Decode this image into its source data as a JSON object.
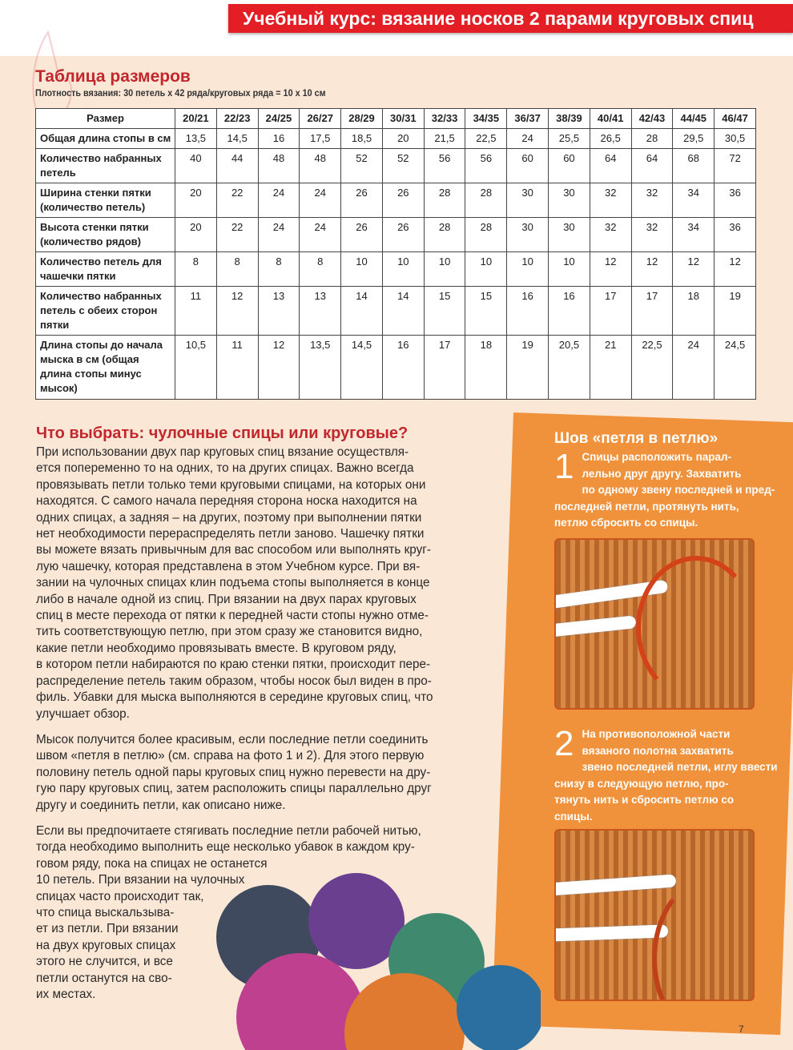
{
  "header": {
    "banner": "Учебный курс: вязание носков 2 парами круговых спиц",
    "banner_color": "#e31e24"
  },
  "size_table": {
    "title": "Таблица размеров",
    "subtitle": "Плотность вязания: 30 петель х 42 ряда/круговых ряда = 10 х 10 см",
    "header_label": "Размер",
    "sizes": [
      "20/21",
      "22/23",
      "24/25",
      "26/27",
      "28/29",
      "30/31",
      "32/33",
      "34/35",
      "36/37",
      "38/39",
      "40/41",
      "42/43",
      "44/45",
      "46/47"
    ],
    "rows": [
      {
        "label": "Общая длина стопы в см",
        "values": [
          "13,5",
          "14,5",
          "16",
          "17,5",
          "18,5",
          "20",
          "21,5",
          "22,5",
          "24",
          "25,5",
          "26,5",
          "28",
          "29,5",
          "30,5"
        ]
      },
      {
        "label": "Количество набранных петель",
        "values": [
          "40",
          "44",
          "48",
          "48",
          "52",
          "52",
          "56",
          "56",
          "60",
          "60",
          "64",
          "64",
          "68",
          "72"
        ]
      },
      {
        "label": "Ширина стенки пятки (количество петель)",
        "values": [
          "20",
          "22",
          "24",
          "24",
          "26",
          "26",
          "28",
          "28",
          "30",
          "30",
          "32",
          "32",
          "34",
          "36"
        ]
      },
      {
        "label": "Высота стенки пятки (количество рядов)",
        "values": [
          "20",
          "22",
          "24",
          "24",
          "26",
          "26",
          "28",
          "28",
          "30",
          "30",
          "32",
          "32",
          "34",
          "36"
        ]
      },
      {
        "label": "Количество петель для чашечки пятки",
        "values": [
          "8",
          "8",
          "8",
          "8",
          "10",
          "10",
          "10",
          "10",
          "10",
          "10",
          "12",
          "12",
          "12",
          "12"
        ]
      },
      {
        "label": "Количество набранных петель с обеих сторон пятки",
        "values": [
          "11",
          "12",
          "13",
          "13",
          "14",
          "14",
          "15",
          "15",
          "16",
          "16",
          "17",
          "17",
          "18",
          "19"
        ]
      },
      {
        "label": "Длина стопы до начала мыска в см (общая длина стопы минус мысок)",
        "values": [
          "10,5",
          "11",
          "12",
          "13,5",
          "14,5",
          "16",
          "17",
          "18",
          "19",
          "20,5",
          "21",
          "22,5",
          "24",
          "24,5"
        ]
      }
    ]
  },
  "article": {
    "title": "Что выбрать: чулочные спицы или круговые?",
    "paragraphs": [
      [
        "При использовании двух пар круговых спиц вязание осуществля-",
        "ется попеременно то на одних, то на других спицах. Важно всегда",
        "провязывать петли только теми круговыми спицами, на которых они",
        "находятся. С самого начала передняя сторона носка находится на",
        "одних спицах, а задняя – на других, поэтому при выполнении пятки",
        "нет необходимости перераспределять петли заново. Чашечку пятки",
        "вы можете вязать привычным для вас способом или выполнять круг-",
        "лую чашечку, которая представлена в этом Учебном курсе. При вя-",
        "зании на чулочных спицах клин подъема стопы выполняется в конце",
        "либо в начале одной из спиц. При вязании на двух парах круговых",
        "спиц в месте перехода от пятки к передней части стопы нужно отме-",
        "тить соответствующую петлю, при этом сразу же становится видно,",
        "какие петли необходимо провязывать вместе. В круговом ряду,",
        "в котором петли набираются по краю стенки пятки, происходит пере-",
        "распределение петель таким образом, чтобы носок был виден в про-",
        "филь. Убавки для мыска выполняются в середине круговых спиц, что",
        "улучшает обзор."
      ],
      [
        "Мысок получится более красивым, если последние петли соединить",
        "швом «петля в петлю» (см. справа на фото 1 и 2). Для этого первую",
        "половину петель одной пары круговых спиц нужно перевести на дру-",
        "гую пару круговых спиц, затем расположить спицы параллельно друг",
        "другу и соединить петли, как описано ниже."
      ],
      [
        "Если вы предпочитаете стягивать последние петли рабочей нитью,",
        "тогда необходимо выполнить еще несколько убавок в каждом кру-",
        "говом ряду, пока на спицах не останется",
        "10 петель. При вязании на чулочных",
        "спицах часто происходит так,",
        "что спица выскальзыва-",
        "ет из петли. При вязании",
        "на двух круговых спицах",
        "этого не случится, и все",
        "петли останутся на сво-",
        "их местах."
      ]
    ]
  },
  "sidebar": {
    "title": "Шов «петля в петлю»",
    "panel_color": "#f0913b",
    "steps": [
      {
        "number": "1",
        "lines": [
          "Спицы расположить парал-",
          "лельно друг другу. Захватить",
          "по одному звену последней и пред-",
          "последней петли, протянуть нить,",
          "петлю сбросить со спицы."
        ]
      },
      {
        "number": "2",
        "lines": [
          "На противоположной части",
          "вязаного полотна захватить",
          "звено последней петли, иглу ввести",
          "снизу в следующую петлю, про-",
          "тянуть нить и сбросить петлю со",
          "спицы."
        ]
      }
    ]
  },
  "page_number": "7"
}
